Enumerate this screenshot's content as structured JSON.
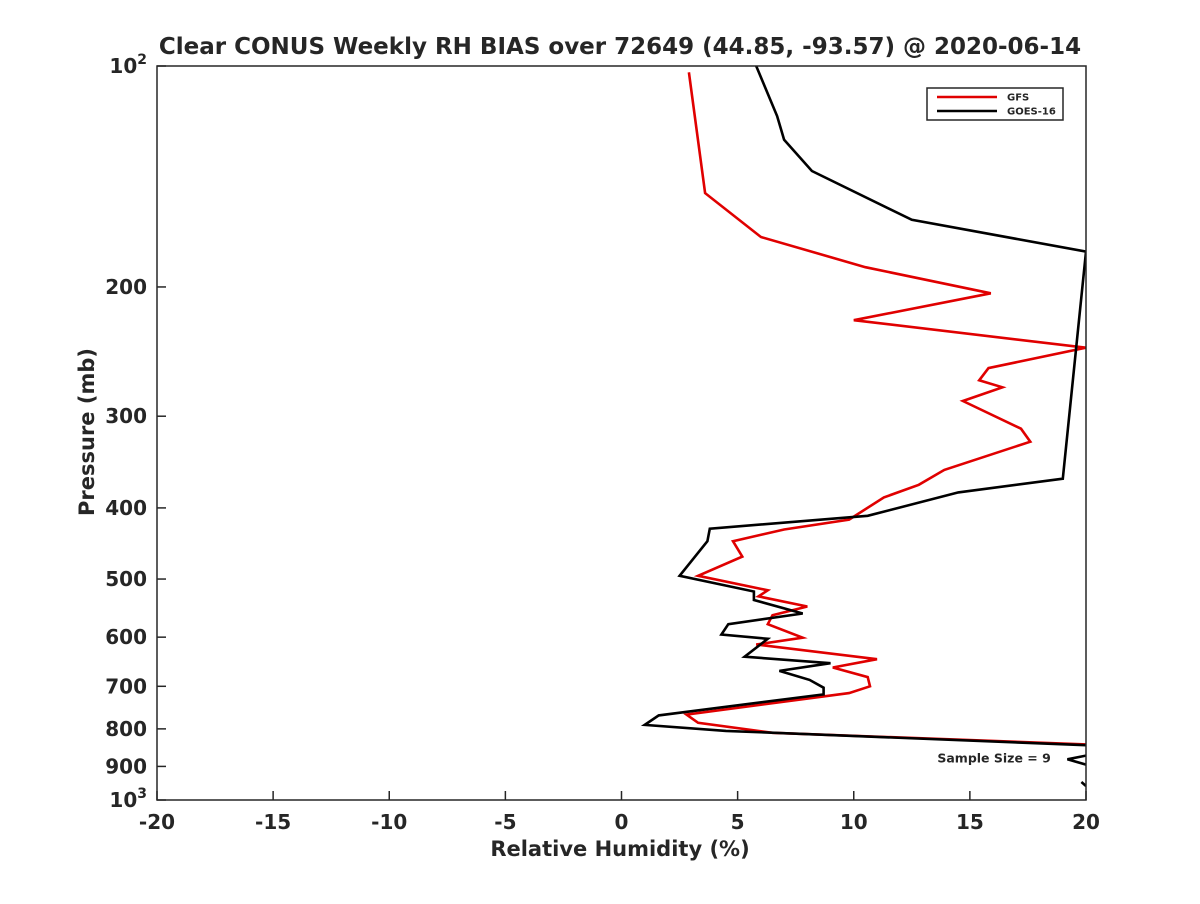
{
  "chart_data": {
    "type": "line",
    "title": "Clear CONUS Weekly RH BIAS over 72649 (44.85, -93.57) @ 2020-06-14",
    "xlabel": "Relative Humidity (%)",
    "ylabel": "Pressure (mb)",
    "xlim": [
      -20,
      20
    ],
    "ylim": [
      100,
      1000
    ],
    "y_scale": "log",
    "y_reversed": true,
    "grid": false,
    "legend_position": "top-right",
    "x_ticks": [
      {
        "value": -20,
        "label": "-20"
      },
      {
        "value": -15,
        "label": "-15"
      },
      {
        "value": -10,
        "label": "-10"
      },
      {
        "value": -5,
        "label": "-5"
      },
      {
        "value": 0,
        "label": "0"
      },
      {
        "value": 5,
        "label": "5"
      },
      {
        "value": 10,
        "label": "10"
      },
      {
        "value": 15,
        "label": "15"
      },
      {
        "value": 20,
        "label": "20"
      }
    ],
    "y_ticks": [
      {
        "value": 100,
        "label": "10",
        "sup": "2"
      },
      {
        "value": 200,
        "label": "200"
      },
      {
        "value": 300,
        "label": "300"
      },
      {
        "value": 400,
        "label": "400"
      },
      {
        "value": 500,
        "label": "500"
      },
      {
        "value": 600,
        "label": "600"
      },
      {
        "value": 700,
        "label": "700"
      },
      {
        "value": 800,
        "label": "800"
      },
      {
        "value": 900,
        "label": "900"
      },
      {
        "value": 1000,
        "label": "10",
        "sup": "3"
      }
    ],
    "series": [
      {
        "name": "GFS",
        "color": "#e00000",
        "x": [
          2.9,
          3.6,
          6.0,
          10.5,
          15.9,
          10.0,
          20.0,
          15.8,
          15.4,
          16.4,
          14.7,
          17.2,
          17.6,
          13.9,
          12.8,
          11.3,
          9.8,
          7.0,
          4.8,
          5.2,
          3.3,
          6.3,
          5.9,
          8.0,
          6.5,
          6.3,
          7.8,
          5.8,
          11.0,
          9.1,
          10.6,
          10.7,
          9.8,
          2.8,
          3.3,
          6.5,
          20.0
        ],
        "y": [
          102,
          149,
          171,
          188,
          204,
          222,
          242,
          258,
          268,
          274,
          286,
          312,
          325,
          355,
          372,
          387,
          415,
          428,
          444,
          466,
          495,
          518,
          528,
          545,
          560,
          576,
          601,
          614,
          643,
          660,
          680,
          700,
          715,
          765,
          785,
          810,
          840
        ]
      },
      {
        "name": "GOES-16",
        "color": "#000000",
        "x": [
          5.8,
          6.7,
          7.0,
          8.2,
          12.5,
          20.0,
          19.0,
          14.5,
          10.6,
          3.8,
          3.7,
          2.5,
          5.7,
          5.7,
          7.8,
          4.6,
          4.3,
          6.3,
          5.3,
          9.0,
          6.8,
          8.1,
          8.7,
          8.7,
          1.6,
          1.0,
          4.5,
          20.0
        ],
        "y": [
          100,
          117,
          126,
          139,
          162,
          179,
          365,
          381,
          410,
          427,
          444,
          495,
          520,
          534,
          557,
          576,
          595,
          603,
          638,
          651,
          667,
          686,
          703,
          718,
          767,
          790,
          805,
          842
        ]
      },
      {
        "name": "",
        "color": "#000000",
        "x": [
          20.0,
          19.2,
          20.0
        ],
        "y": [
          870,
          880,
          895
        ]
      },
      {
        "name": "",
        "color": "#000000",
        "x": [
          19.8,
          20.0
        ],
        "y": [
          945,
          957
        ]
      }
    ],
    "annotations": [
      {
        "text": "Sample Size = 9",
        "x": 13.6,
        "y": 895
      }
    ]
  }
}
